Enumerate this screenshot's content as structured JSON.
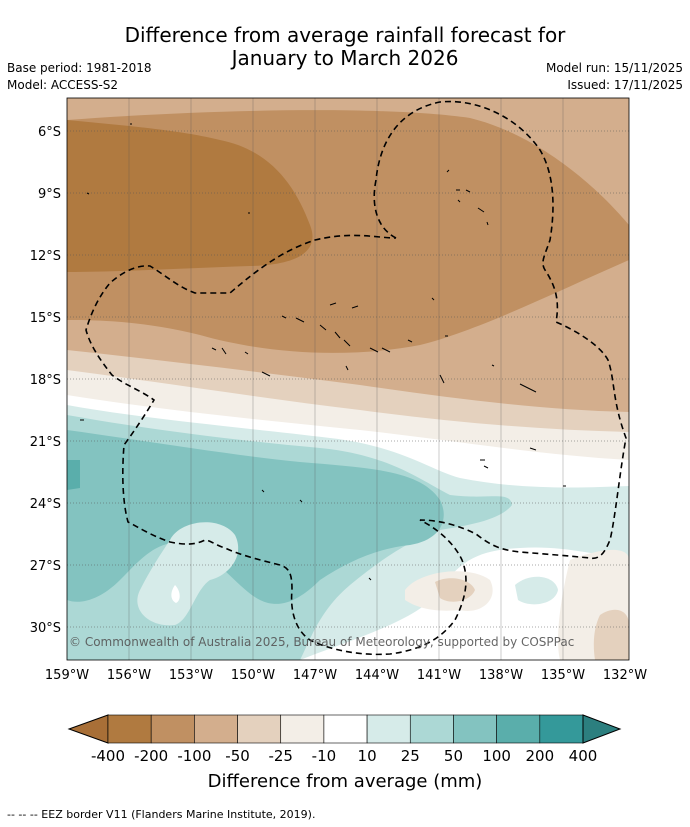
{
  "title_line1": "Difference from average rainfall forecast for",
  "title_line2": "January to March 2026",
  "base_period": "Base period: 1981-2018",
  "model": "Model: ACCESS-S2",
  "model_run": "Model run: 15/11/2025",
  "issued": "Issued: 17/11/2025",
  "copyright": "© Commonwealth of Australia 2025, Bureau of Meteorology, supported by COSPPac",
  "lat_labels": [
    "6°S",
    "9°S",
    "12°S",
    "15°S",
    "18°S",
    "21°S",
    "24°S",
    "27°S",
    "30°S"
  ],
  "lon_labels": [
    "159°W",
    "156°W",
    "153°W",
    "150°W",
    "147°W",
    "144°W",
    "141°W",
    "138°W",
    "135°W",
    "132°W"
  ],
  "colorbar": {
    "ticks": [
      "-400",
      "-200",
      "-100",
      "-50",
      "-25",
      "-10",
      "10",
      "25",
      "50",
      "100",
      "200",
      "400"
    ],
    "label": "Difference from average (mm)",
    "colors": [
      "#a86f37",
      "#b07a40",
      "#c09062",
      "#d3ae8d",
      "#e4d1be",
      "#f3eee7",
      "#ffffff",
      "#d6ebe9",
      "#acd8d5",
      "#83c3c0",
      "#5aaeab",
      "#34999a",
      "#2c7f7f"
    ]
  },
  "legend_footer": "--  --  -- EEZ border V11 (Flanders Marine Institute, 2019)."
}
